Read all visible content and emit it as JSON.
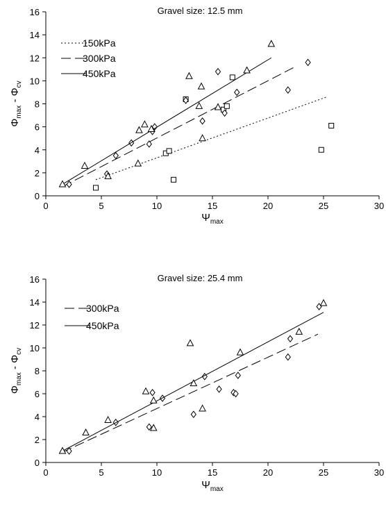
{
  "chart_data": [
    {
      "type": "scatter",
      "title": "Gravel size: 12.5 mm",
      "xlabel": "Ψmax",
      "xlabel_main": "Ψ",
      "xlabel_sub": "max",
      "ylabel": "Φmax - Φcv",
      "ylabel_parts": [
        "Φ",
        "max",
        " - Φ",
        "cv"
      ],
      "xlim": [
        0,
        30
      ],
      "ylim": [
        0,
        16
      ],
      "xticks": [
        "0",
        "5",
        "10",
        "15",
        "20",
        "25",
        "30"
      ],
      "yticks": [
        "0",
        "2",
        "4",
        "6",
        "8",
        "10",
        "12",
        "14",
        "16"
      ],
      "legend_position": "top-left",
      "legend": [
        {
          "label": "150kPa",
          "line": "dotted"
        },
        {
          "label": "300kPa",
          "line": "long-dash"
        },
        {
          "label": "450kPa",
          "line": "solid"
        }
      ],
      "series": [
        {
          "name": "150kPa",
          "marker": "square",
          "line": "dotted",
          "points": [
            [
              4.5,
              0.7
            ],
            [
              10.8,
              3.7
            ],
            [
              11.1,
              3.9
            ],
            [
              11.5,
              1.4
            ],
            [
              12.6,
              8.4
            ],
            [
              16.0,
              7.5
            ],
            [
              16.3,
              7.8
            ],
            [
              16.8,
              10.3
            ],
            [
              24.8,
              4.0
            ],
            [
              25.7,
              6.1
            ]
          ],
          "trend": [
            [
              4.5,
              1.4
            ],
            [
              25.3,
              8.6
            ]
          ]
        },
        {
          "name": "300kPa",
          "marker": "diamond",
          "line": "long-dash",
          "points": [
            [
              2.1,
              1.0
            ],
            [
              5.5,
              1.9
            ],
            [
              6.3,
              3.5
            ],
            [
              7.7,
              4.6
            ],
            [
              9.3,
              4.5
            ],
            [
              9.6,
              5.6
            ],
            [
              9.8,
              6.0
            ],
            [
              12.6,
              8.3
            ],
            [
              14.1,
              6.5
            ],
            [
              15.5,
              10.8
            ],
            [
              16.1,
              7.2
            ],
            [
              17.2,
              9.0
            ],
            [
              21.8,
              9.2
            ],
            [
              23.6,
              11.6
            ]
          ],
          "trend": [
            [
              1.5,
              0.8
            ],
            [
              22.6,
              11.3
            ]
          ]
        },
        {
          "name": "450kPa",
          "marker": "triangle",
          "line": "solid",
          "points": [
            [
              1.5,
              1.0
            ],
            [
              3.5,
              2.6
            ],
            [
              5.6,
              1.7
            ],
            [
              8.3,
              2.8
            ],
            [
              8.4,
              5.7
            ],
            [
              8.9,
              6.2
            ],
            [
              9.5,
              5.8
            ],
            [
              12.9,
              10.4
            ],
            [
              13.8,
              7.8
            ],
            [
              14.0,
              9.5
            ],
            [
              14.1,
              5.0
            ],
            [
              15.5,
              7.7
            ],
            [
              18.1,
              10.9
            ],
            [
              20.3,
              13.2
            ]
          ],
          "trend": [
            [
              1.5,
              1.0
            ],
            [
              20.3,
              12.0
            ]
          ]
        }
      ]
    },
    {
      "type": "scatter",
      "title": "Gravel size: 25.4 mm",
      "xlabel": "Ψmax",
      "xlabel_main": "Ψ",
      "xlabel_sub": "max",
      "ylabel": "Φmax - Φcv",
      "ylabel_parts": [
        "Φ",
        "max",
        " - Φ",
        "cv"
      ],
      "xlim": [
        0,
        30
      ],
      "ylim": [
        0,
        16
      ],
      "xticks": [
        "0",
        "5",
        "10",
        "15",
        "20",
        "25",
        "30"
      ],
      "yticks": [
        "0",
        "2",
        "4",
        "6",
        "8",
        "10",
        "12",
        "14",
        "16"
      ],
      "legend_position": "top-left",
      "legend": [
        {
          "label": "300kPa",
          "line": "long-dash"
        },
        {
          "label": "450kPa",
          "line": "solid"
        }
      ],
      "series": [
        {
          "name": "300kPa",
          "marker": "diamond",
          "line": "long-dash",
          "points": [
            [
              2.1,
              1.0
            ],
            [
              6.3,
              3.5
            ],
            [
              9.3,
              3.1
            ],
            [
              9.6,
              6.1
            ],
            [
              10.5,
              5.6
            ],
            [
              13.3,
              4.2
            ],
            [
              14.3,
              7.5
            ],
            [
              15.6,
              6.4
            ],
            [
              16.9,
              6.1
            ],
            [
              17.1,
              6.0
            ],
            [
              17.3,
              7.6
            ],
            [
              21.8,
              9.2
            ],
            [
              22.0,
              10.8
            ],
            [
              24.6,
              13.6
            ]
          ],
          "trend": [
            [
              1.5,
              0.9
            ],
            [
              24.5,
              11.2
            ]
          ]
        },
        {
          "name": "450kPa",
          "marker": "triangle",
          "line": "solid",
          "points": [
            [
              1.5,
              1.0
            ],
            [
              3.6,
              2.6
            ],
            [
              5.6,
              3.7
            ],
            [
              9.0,
              6.2
            ],
            [
              9.7,
              5.4
            ],
            [
              9.7,
              3.0
            ],
            [
              13.0,
              10.4
            ],
            [
              13.3,
              6.9
            ],
            [
              14.1,
              4.7
            ],
            [
              17.5,
              9.6
            ],
            [
              22.8,
              11.4
            ],
            [
              25.0,
              13.9
            ]
          ],
          "trend": [
            [
              1.5,
              1.0
            ],
            [
              25.0,
              13.1
            ]
          ]
        }
      ]
    }
  ]
}
